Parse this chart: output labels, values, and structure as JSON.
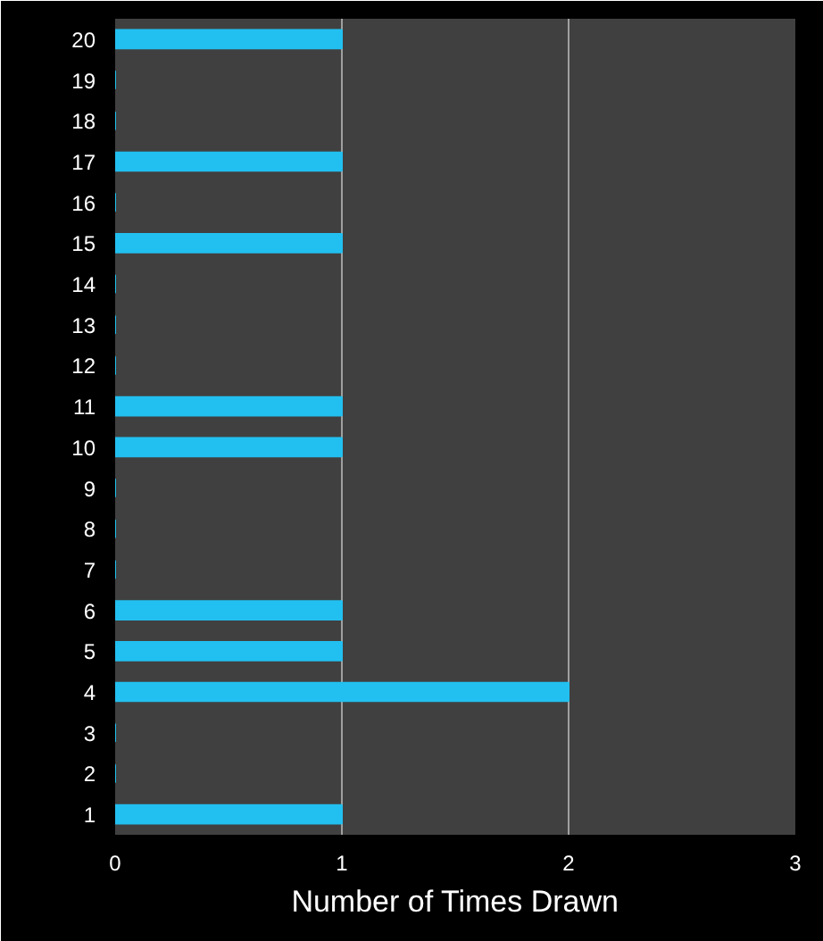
{
  "chart_data": {
    "type": "bar",
    "orientation": "horizontal",
    "xlabel": "Number of Times Drawn",
    "categories": [
      "20",
      "19",
      "18",
      "17",
      "16",
      "15",
      "14",
      "13",
      "12",
      "11",
      "10",
      "9",
      "8",
      "7",
      "6",
      "5",
      "4",
      "3",
      "2",
      "1"
    ],
    "values": [
      1,
      0,
      0,
      1,
      0,
      1,
      0,
      0,
      0,
      1,
      1,
      0,
      0,
      0,
      1,
      1,
      2,
      0,
      0,
      1
    ],
    "color": "#22c0f0",
    "xlim": [
      0,
      3
    ],
    "xticks": [
      0,
      1,
      2,
      3
    ],
    "grid": "x"
  }
}
